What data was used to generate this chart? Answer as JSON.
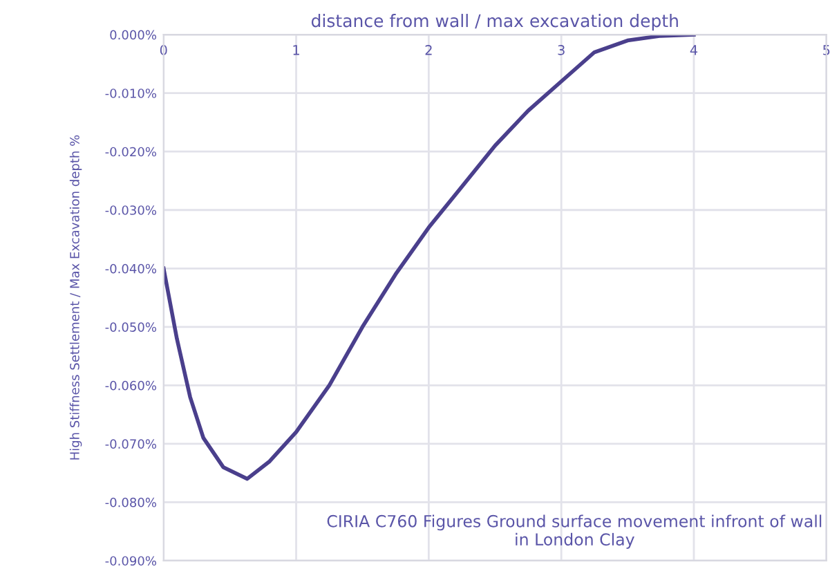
{
  "chart_data": {
    "type": "line",
    "xlabel": "distance from wall / max excavation depth",
    "ylabel": "High Stiffness Settlement / Max Excavation depth %",
    "annotations": [
      "CIRIA C760 Figures Ground surface movement infront of wall\nin London Clay"
    ],
    "x": [
      0,
      0.1,
      0.2,
      0.3,
      0.45,
      0.63,
      0.8,
      1.0,
      1.25,
      1.5,
      1.75,
      2.0,
      2.25,
      2.5,
      2.75,
      3.0,
      3.25,
      3.5,
      3.75,
      4.0
    ],
    "series": [
      {
        "color": "#4a3f8c",
        "values": [
          -0.04,
          -0.052,
          -0.062,
          -0.069,
          -0.074,
          -0.076,
          -0.073,
          -0.068,
          -0.06,
          -0.05,
          -0.041,
          -0.033,
          -0.026,
          -0.019,
          -0.013,
          -0.008,
          -0.003,
          -0.001,
          -0.0002,
          0
        ]
      }
    ],
    "xlim": [
      0,
      5
    ],
    "xticks": [
      0,
      1,
      2,
      3,
      4,
      5
    ],
    "ylim": [
      -0.09,
      0
    ],
    "yticks": [
      {
        "value": 0,
        "label": "0.000%"
      },
      {
        "value": -0.01,
        "label": "-0.010%"
      },
      {
        "value": -0.02,
        "label": "-0.020%"
      },
      {
        "value": -0.03,
        "label": "-0.030%"
      },
      {
        "value": -0.04,
        "label": "-0.040%"
      },
      {
        "value": -0.05,
        "label": "-0.050%"
      },
      {
        "value": -0.06,
        "label": "-0.060%"
      },
      {
        "value": -0.07,
        "label": "-0.070%"
      },
      {
        "value": -0.08,
        "label": "-0.080%"
      },
      {
        "value": -0.09,
        "label": "-0.090%"
      }
    ],
    "grid": true,
    "marker": "none",
    "line_style": "solid"
  }
}
